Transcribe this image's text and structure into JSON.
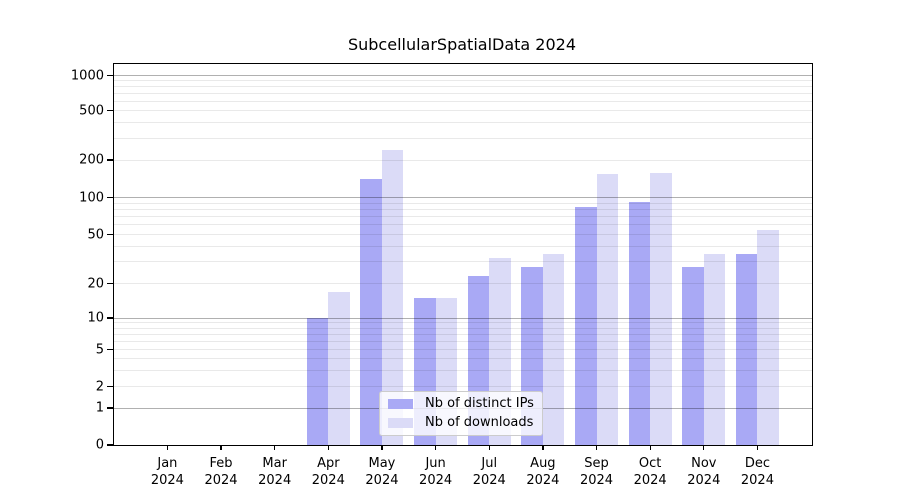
{
  "title": "SubcellularSpatialData 2024",
  "chart_data": {
    "type": "bar",
    "title": "SubcellularSpatialData 2024",
    "x_months": [
      "Jan",
      "Feb",
      "Mar",
      "Apr",
      "May",
      "Jun",
      "Jul",
      "Aug",
      "Sep",
      "Oct",
      "Nov",
      "Dec"
    ],
    "x_year": "2024",
    "categories": [
      "Jan 2024",
      "Feb 2024",
      "Mar 2024",
      "Apr 2024",
      "May 2024",
      "Jun 2024",
      "Jul 2024",
      "Aug 2024",
      "Sep 2024",
      "Oct 2024",
      "Nov 2024",
      "Dec 2024"
    ],
    "series": [
      {
        "name": "Nb of distinct IPs",
        "color": "#a9a9f5",
        "values": [
          0,
          0,
          0,
          10,
          140,
          15,
          23,
          27,
          84,
          92,
          27,
          35
        ]
      },
      {
        "name": "Nb of downloads",
        "color": "#dbdbf7",
        "values": [
          0,
          0,
          0,
          17,
          240,
          15,
          32,
          35,
          155,
          158,
          35,
          54
        ]
      }
    ],
    "y_ticks": [
      0,
      1,
      2,
      5,
      10,
      20,
      50,
      100,
      200,
      500,
      1000
    ],
    "y_major_gridlines": [
      1,
      10,
      100,
      1000
    ],
    "y_minor_gridlines": [
      3,
      4,
      6,
      7,
      8,
      9,
      30,
      40,
      60,
      70,
      80,
      90,
      300,
      400,
      600,
      700,
      800,
      900
    ],
    "y_scale": "symlog (log above 1, linear 0-1)",
    "ylim": [
      0,
      1250
    ],
    "xlabel": "",
    "ylabel": "",
    "grid": "horizontal",
    "legend_position": "lower center"
  }
}
